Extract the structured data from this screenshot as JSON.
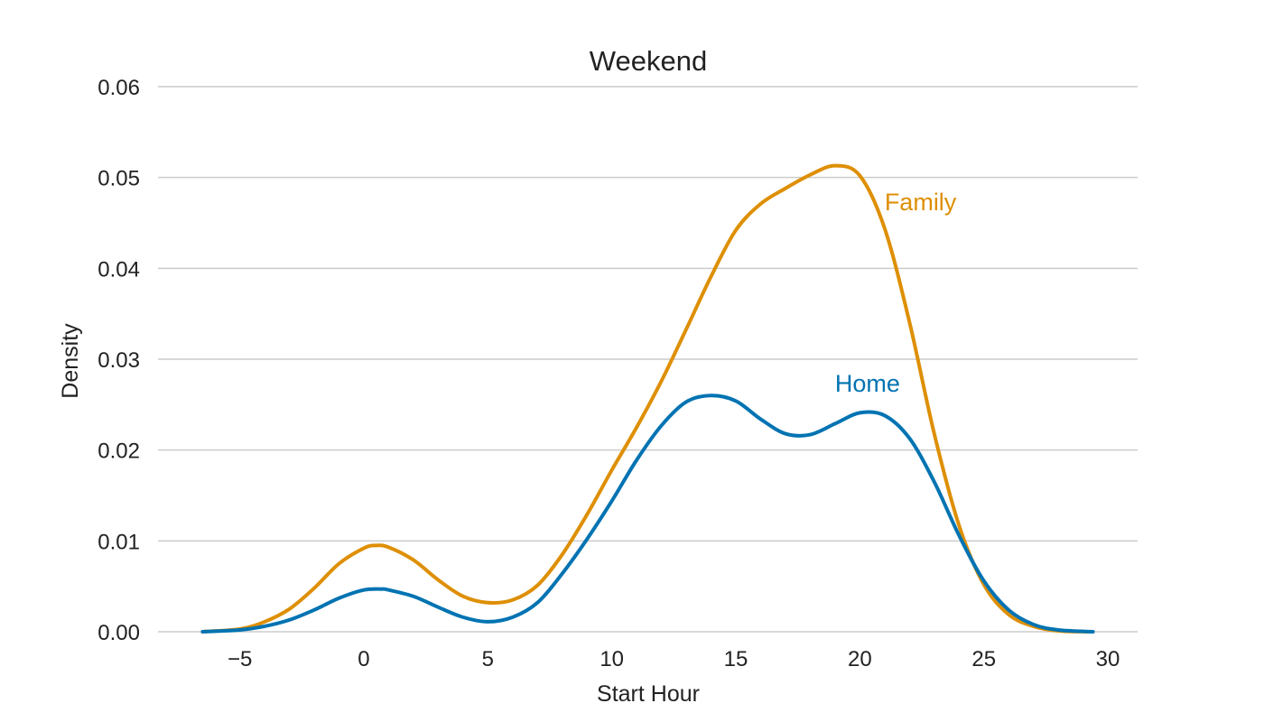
{
  "chart_data": {
    "type": "line",
    "title": "Weekend",
    "xlabel": "Start Hour",
    "ylabel": "Density",
    "xlim": [
      -8.3,
      31.2
    ],
    "ylim": [
      0,
      0.06
    ],
    "x_ticks": [
      -5,
      0,
      5,
      10,
      15,
      20,
      25,
      30
    ],
    "x_tick_labels": [
      "−5",
      "0",
      "5",
      "10",
      "15",
      "20",
      "25",
      "30"
    ],
    "y_ticks": [
      0,
      0.01,
      0.02,
      0.03,
      0.04,
      0.05,
      0.06
    ],
    "y_tick_labels": [
      "0.00",
      "0.01",
      "0.02",
      "0.03",
      "0.04",
      "0.05",
      "0.06"
    ],
    "grid": "horizontal",
    "legend": "none",
    "series": [
      {
        "name": "Family",
        "color": "#de8f05",
        "label_at": [
          21,
          0.0464
        ],
        "points": [
          [
            -6.5,
            0.0
          ],
          [
            -5,
            0.0003
          ],
          [
            -4,
            0.0011
          ],
          [
            -3,
            0.0025
          ],
          [
            -2,
            0.0048
          ],
          [
            -1,
            0.0075
          ],
          [
            0,
            0.0092
          ],
          [
            0.5,
            0.0095
          ],
          [
            1,
            0.0093
          ],
          [
            2,
            0.0079
          ],
          [
            3,
            0.0057
          ],
          [
            4,
            0.0039
          ],
          [
            5,
            0.0032
          ],
          [
            6,
            0.0035
          ],
          [
            7,
            0.0051
          ],
          [
            8,
            0.0085
          ],
          [
            9,
            0.0129
          ],
          [
            10,
            0.0178
          ],
          [
            11,
            0.0225
          ],
          [
            12,
            0.0276
          ],
          [
            13,
            0.0333
          ],
          [
            14,
            0.0391
          ],
          [
            15,
            0.0442
          ],
          [
            16,
            0.0471
          ],
          [
            17,
            0.0488
          ],
          [
            18,
            0.0503
          ],
          [
            19,
            0.0513
          ],
          [
            20,
            0.0502
          ],
          [
            21,
            0.0444
          ],
          [
            22,
            0.0341
          ],
          [
            23,
            0.0218
          ],
          [
            24,
            0.0117
          ],
          [
            25,
            0.0052
          ],
          [
            26,
            0.0019
          ],
          [
            27,
            0.0006
          ],
          [
            28,
            0.0001
          ],
          [
            29.2,
            0.0
          ]
        ]
      },
      {
        "name": "Home",
        "color": "#0173b2",
        "label_at": [
          19,
          0.0264
        ],
        "points": [
          [
            -6.5,
            0.0
          ],
          [
            -5,
            0.0002
          ],
          [
            -4,
            0.0006
          ],
          [
            -3,
            0.0013
          ],
          [
            -2,
            0.0024
          ],
          [
            -1,
            0.0037
          ],
          [
            0,
            0.0046
          ],
          [
            0.7,
            0.0047
          ],
          [
            1,
            0.0046
          ],
          [
            2,
            0.0039
          ],
          [
            3,
            0.0027
          ],
          [
            4,
            0.0016
          ],
          [
            5,
            0.0011
          ],
          [
            6,
            0.0016
          ],
          [
            7,
            0.0032
          ],
          [
            8,
            0.0064
          ],
          [
            9,
            0.0102
          ],
          [
            10,
            0.0144
          ],
          [
            11,
            0.0189
          ],
          [
            12,
            0.0227
          ],
          [
            13,
            0.0253
          ],
          [
            14,
            0.026
          ],
          [
            15,
            0.0254
          ],
          [
            16,
            0.0234
          ],
          [
            17,
            0.0218
          ],
          [
            18,
            0.0217
          ],
          [
            19,
            0.0229
          ],
          [
            20,
            0.0241
          ],
          [
            21,
            0.0238
          ],
          [
            22,
            0.0213
          ],
          [
            23,
            0.0165
          ],
          [
            24,
            0.0106
          ],
          [
            25,
            0.0056
          ],
          [
            26,
            0.0024
          ],
          [
            27,
            0.0008
          ],
          [
            28,
            0.0002
          ],
          [
            29.4,
            0.0
          ]
        ]
      }
    ]
  }
}
